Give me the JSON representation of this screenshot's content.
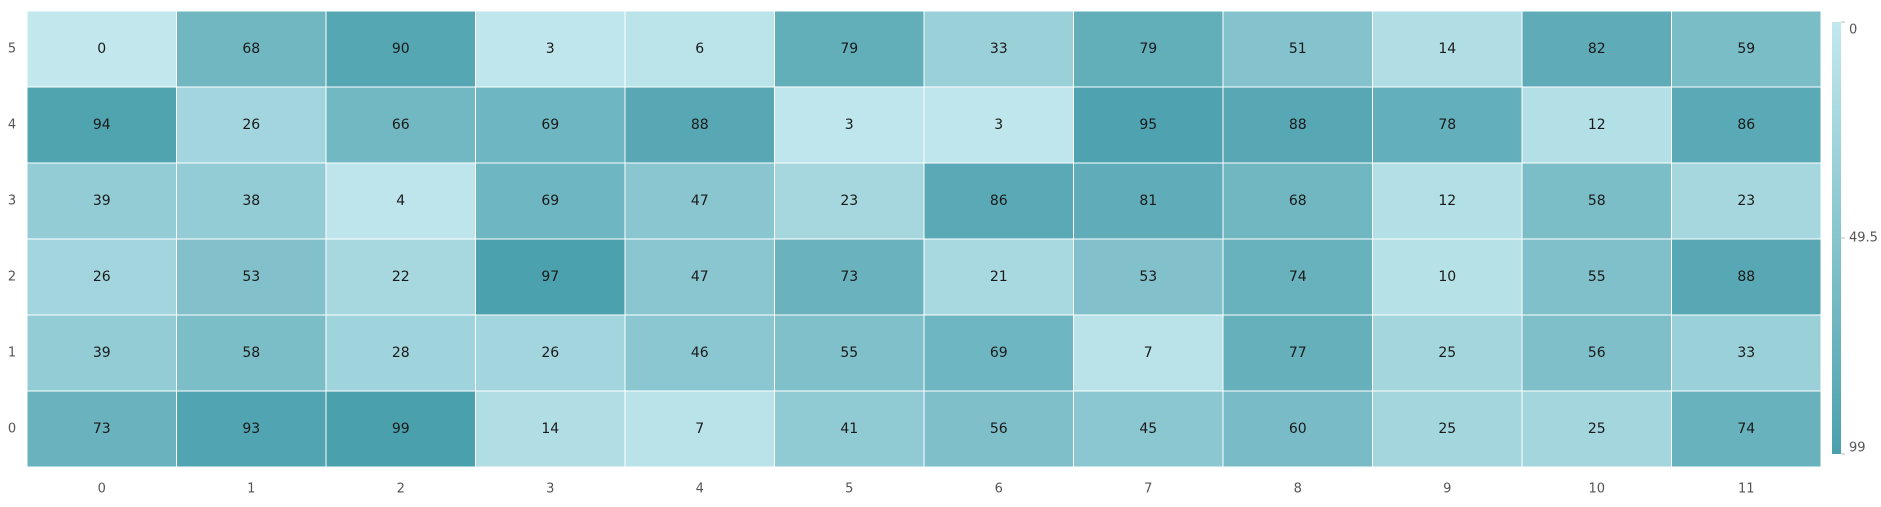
{
  "chart_data": {
    "type": "heatmap",
    "x_categories": [
      "0",
      "1",
      "2",
      "3",
      "4",
      "5",
      "6",
      "7",
      "8",
      "9",
      "10",
      "11"
    ],
    "y_categories": [
      "0",
      "1",
      "2",
      "3",
      "4",
      "5"
    ],
    "rows": [
      {
        "y": "5",
        "values": [
          0,
          68,
          90,
          3,
          6,
          79,
          33,
          79,
          51,
          14,
          82,
          59
        ]
      },
      {
        "y": "4",
        "values": [
          94,
          26,
          66,
          69,
          88,
          3,
          3,
          95,
          88,
          78,
          12,
          86
        ]
      },
      {
        "y": "3",
        "values": [
          39,
          38,
          4,
          69,
          47,
          23,
          86,
          81,
          68,
          12,
          58,
          23
        ]
      },
      {
        "y": "2",
        "values": [
          26,
          53,
          22,
          97,
          47,
          73,
          21,
          53,
          74,
          10,
          55,
          88
        ]
      },
      {
        "y": "1",
        "values": [
          39,
          58,
          28,
          26,
          46,
          55,
          69,
          7,
          77,
          25,
          56,
          33
        ]
      },
      {
        "y": "0",
        "values": [
          73,
          93,
          99,
          14,
          7,
          41,
          56,
          45,
          60,
          25,
          25,
          74
        ]
      }
    ],
    "color_scale": {
      "min": 0,
      "max": 99,
      "low_color": "#c2e8ee",
      "high_color": "#4aa0ad",
      "legend_ticks": [
        "0",
        "49.5",
        "99"
      ]
    },
    "title": "",
    "xlabel": "",
    "ylabel": "",
    "grid": false,
    "legend_position": "right"
  }
}
